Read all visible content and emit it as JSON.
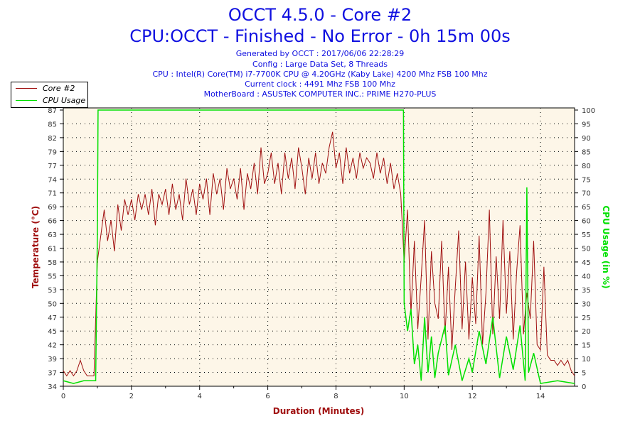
{
  "title": "OCCT 4.5.0 - Core #2",
  "subtitle": "CPU:OCCT - Finished - No Error - 0h 15m 00s",
  "info": [
    "Generated by OCCT : 2017/06/06 22:28:29",
    "Config : Large Data Set, 8 Threads",
    "CPU : Intel(R) Core(TM) i7-7700K CPU @ 4.20GHz (Kaby Lake) 4200 Mhz FSB 100 Mhz",
    "Current clock : 4491 Mhz FSB 100 Mhz",
    "MotherBoard : ASUSTeK COMPUTER INC.: PRIME H270-PLUS"
  ],
  "colors": {
    "temp": "#a01010",
    "cpu": "#00e000",
    "plot_bg": "#fdf6e8",
    "text": "#1010e0"
  },
  "chart_data": {
    "type": "line",
    "xlabel": "Duration (Minutes)",
    "ylabel": "Temperature (°C)",
    "y2label": "CPU Usage (in %)",
    "xlim": [
      0,
      15
    ],
    "ylim": [
      34,
      87.2
    ],
    "y2lim": [
      0,
      100
    ],
    "xticks": [
      "0",
      "2",
      "4",
      "6",
      "8",
      "10",
      "12",
      "14"
    ],
    "yticks": [
      "34",
      "37",
      "39",
      "42",
      "45",
      "47",
      "50",
      "53",
      "55",
      "58",
      "61",
      "63",
      "66",
      "69",
      "71",
      "74",
      "77",
      "79",
      "82",
      "85",
      "87"
    ],
    "y2ticks": [
      "0",
      "5",
      "10",
      "15",
      "20",
      "25",
      "30",
      "35",
      "40",
      "45",
      "50",
      "55",
      "60",
      "65",
      "70",
      "75",
      "80",
      "85",
      "90",
      "95",
      "100"
    ],
    "legend": {
      "position": "top-left",
      "entries": [
        "Core #2",
        "CPU Usage"
      ]
    },
    "series": [
      {
        "name": "Core #2",
        "x_step": 0.1,
        "values": [
          37,
          36,
          37,
          36,
          37,
          39,
          37,
          36,
          36,
          36,
          58,
          63,
          68,
          62,
          66,
          60,
          69,
          64,
          70,
          67,
          70,
          66,
          71,
          68,
          71,
          67,
          72,
          65,
          71,
          69,
          72,
          67,
          73,
          68,
          71,
          66,
          74,
          69,
          72,
          67,
          73,
          70,
          74,
          67,
          75,
          71,
          74,
          68,
          76,
          72,
          74,
          70,
          76,
          68,
          75,
          72,
          77,
          71,
          80,
          73,
          75,
          79,
          73,
          77,
          71,
          79,
          74,
          78,
          72,
          80,
          76,
          71,
          78,
          74,
          79,
          73,
          77,
          75,
          80,
          83,
          76,
          79,
          73,
          80,
          75,
          78,
          74,
          79,
          76,
          78,
          77,
          74,
          79,
          75,
          78,
          73,
          77,
          72,
          75,
          71,
          58,
          68,
          48,
          62,
          45,
          55,
          66,
          43,
          60,
          50,
          47,
          62,
          44,
          57,
          41,
          53,
          64,
          45,
          58,
          43,
          55,
          46,
          63,
          42,
          52,
          68,
          44,
          59,
          47,
          66,
          48,
          60,
          43,
          56,
          65,
          44,
          52,
          47,
          62,
          42,
          41,
          57,
          40,
          39,
          39,
          38,
          39,
          38,
          39,
          37,
          36
        ]
      },
      {
        "name": "CPU Usage",
        "points": [
          [
            0,
            2
          ],
          [
            0.3,
            1
          ],
          [
            0.6,
            2
          ],
          [
            0.95,
            2
          ],
          [
            1.0,
            55
          ],
          [
            1.02,
            100
          ],
          [
            9.98,
            100
          ],
          [
            10.0,
            30
          ],
          [
            10.1,
            20
          ],
          [
            10.2,
            28
          ],
          [
            10.3,
            8
          ],
          [
            10.4,
            15
          ],
          [
            10.5,
            2
          ],
          [
            10.6,
            25
          ],
          [
            10.7,
            5
          ],
          [
            10.8,
            18
          ],
          [
            10.9,
            3
          ],
          [
            11.0,
            12
          ],
          [
            11.2,
            22
          ],
          [
            11.3,
            4
          ],
          [
            11.5,
            15
          ],
          [
            11.7,
            2
          ],
          [
            11.9,
            10
          ],
          [
            12.0,
            5
          ],
          [
            12.2,
            20
          ],
          [
            12.4,
            8
          ],
          [
            12.6,
            25
          ],
          [
            12.8,
            3
          ],
          [
            13.0,
            18
          ],
          [
            13.2,
            6
          ],
          [
            13.4,
            22
          ],
          [
            13.55,
            2
          ],
          [
            13.6,
            72
          ],
          [
            13.65,
            5
          ],
          [
            13.8,
            12
          ],
          [
            14.0,
            1
          ],
          [
            14.5,
            2
          ],
          [
            15,
            1
          ]
        ]
      }
    ]
  }
}
